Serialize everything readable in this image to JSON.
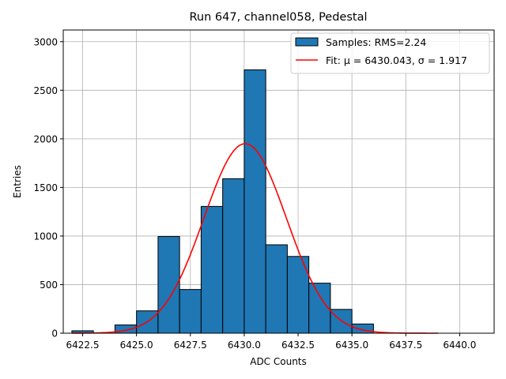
{
  "chart_data": {
    "type": "bar",
    "title": "Run 647, channel058, Pedestal",
    "xlabel": "ADC Counts",
    "ylabel": "Entries",
    "xlim": [
      6421.6,
      6441.6
    ],
    "ylim": [
      0,
      3120
    ],
    "grid": true,
    "legend_position": "top-right",
    "bar_color": "#1f77b4",
    "fit_color": "#ff0000",
    "x_ticks": [
      6422.5,
      6425.0,
      6427.5,
      6430.0,
      6432.5,
      6435.0,
      6437.5,
      6440.0
    ],
    "x_tick_labels": [
      "6422.5",
      "6425.0",
      "6427.5",
      "6430.0",
      "6432.5",
      "6435.0",
      "6437.5",
      "6440.0"
    ],
    "y_ticks": [
      0,
      500,
      1000,
      1500,
      2000,
      2500,
      3000
    ],
    "y_tick_labels": [
      "0",
      "500",
      "1000",
      "1500",
      "2000",
      "2500",
      "3000"
    ],
    "bin_edges": [
      6422,
      6423,
      6424,
      6425,
      6426,
      6427,
      6428,
      6429,
      6430,
      6431,
      6432,
      6433,
      6434,
      6435,
      6436,
      6437,
      6438,
      6439,
      6440,
      6441
    ],
    "bin_counts": [
      25,
      0,
      85,
      230,
      995,
      450,
      1305,
      1590,
      2710,
      910,
      790,
      515,
      245,
      95,
      0,
      0,
      0,
      0,
      0
    ],
    "fit": {
      "mu": 6430.043,
      "sigma": 1.917,
      "amplitude": 1950,
      "x_range": [
        6422,
        6439
      ]
    },
    "legend": [
      {
        "kind": "patch",
        "label": "Samples: RMS=2.24"
      },
      {
        "kind": "line",
        "label": "Fit: μ = 6430.043, σ = 1.917"
      }
    ]
  }
}
